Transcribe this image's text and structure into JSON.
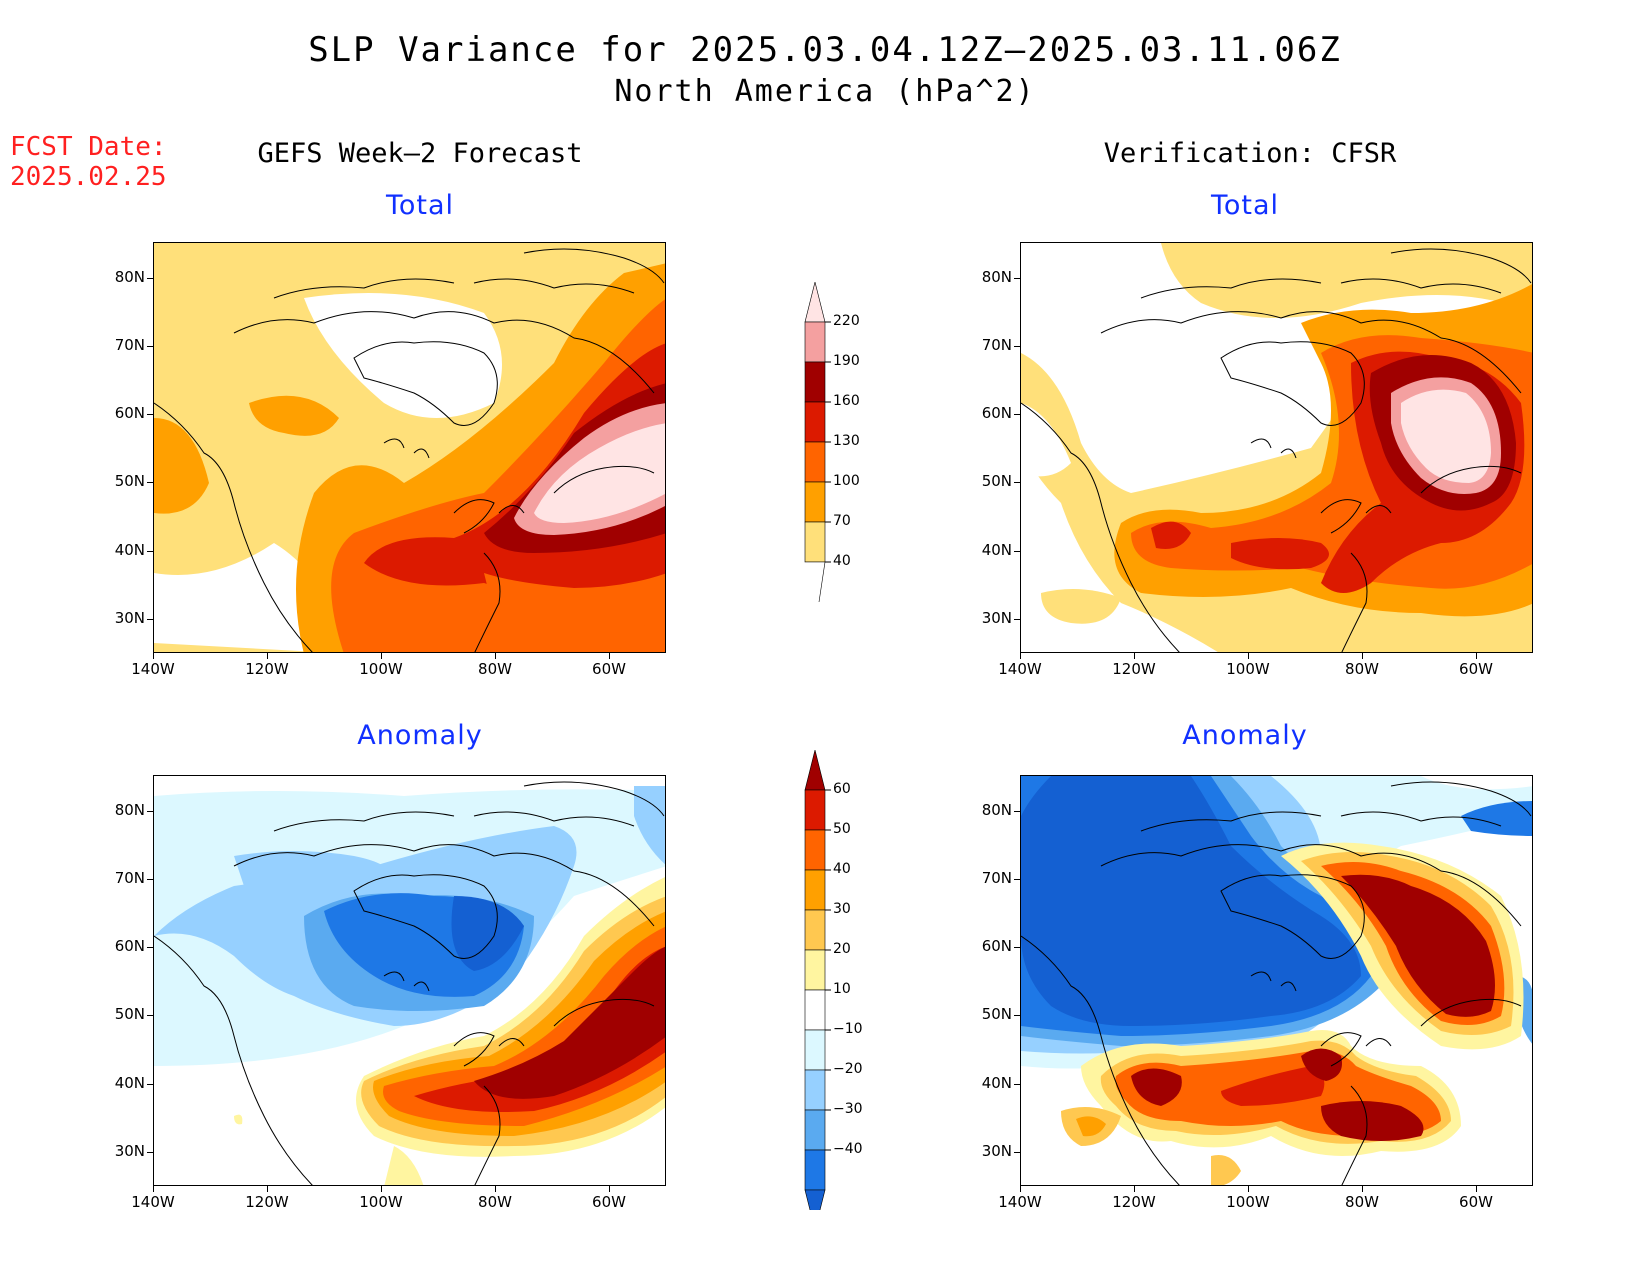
{
  "title": {
    "line1": "SLP Variance for 2025.03.04.12Z–2025.03.11.06Z",
    "line2": "North America (hPa^2)"
  },
  "forecast_date": {
    "label": "FCST Date:",
    "value": "2025.02.25"
  },
  "columns": {
    "left": "GEFS Week–2 Forecast",
    "right": "Verification: CFSR"
  },
  "panels": {
    "top_left": "Total",
    "top_right": "Total",
    "bottom_left": "Anomaly",
    "bottom_right": "Anomaly"
  },
  "axes": {
    "lat_labels": [
      "80N",
      "70N",
      "60N",
      "50N",
      "40N",
      "30N"
    ],
    "lon_labels": [
      "140W",
      "120W",
      "100W",
      "80W",
      "60W"
    ]
  },
  "colorbars": {
    "total": {
      "levels": [
        "220",
        "190",
        "160",
        "130",
        "100",
        "70",
        "40"
      ],
      "colors": [
        "#ffe4e4",
        "#f4a0a0",
        "#a00000",
        "#dc1a00",
        "#ff6400",
        "#ffa000",
        "#ffe07a"
      ]
    },
    "anomaly": {
      "levels": [
        "60",
        "50",
        "40",
        "30",
        "20",
        "10",
        "−10",
        "−20",
        "−30",
        "−40"
      ],
      "colors": [
        "#a00000",
        "#dc1a00",
        "#ff6400",
        "#ffa000",
        "#ffc850",
        "#fff5a0",
        "#ffffff",
        "#dcf8ff",
        "#96d0ff",
        "#5aaaf0",
        "#1e78e6",
        "#1460d2"
      ]
    }
  }
}
